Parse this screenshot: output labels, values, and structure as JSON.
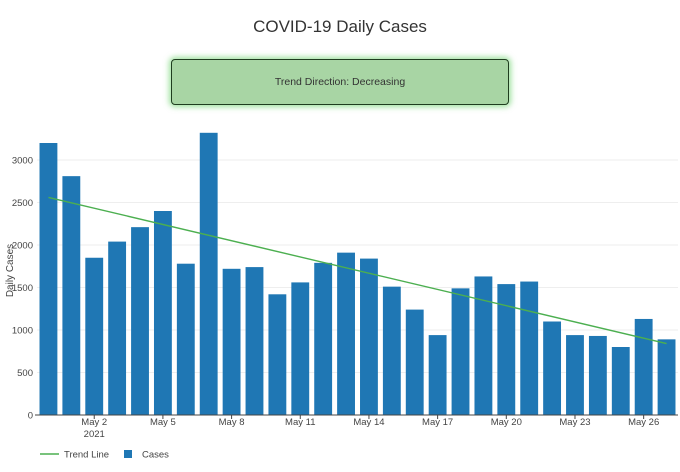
{
  "trend_box": {
    "label": "Trend Direction: Decreasing"
  },
  "colors": {
    "bar": "#1f77b4",
    "trend": "#4caf50",
    "trend_box_bg": "#a8d5a4"
  },
  "chart_data": {
    "type": "bar",
    "title": "COVID-19 Daily Cases",
    "xlabel": "",
    "ylabel": "Daily Cases",
    "ylim": [
      0,
      3400
    ],
    "yticks": [
      0,
      500,
      1000,
      1500,
      2000,
      2500,
      3000
    ],
    "x": [
      "2021-04-30",
      "2021-05-01",
      "2021-05-02",
      "2021-05-03",
      "2021-05-04",
      "2021-05-05",
      "2021-05-06",
      "2021-05-07",
      "2021-05-08",
      "2021-05-09",
      "2021-05-10",
      "2021-05-11",
      "2021-05-12",
      "2021-05-13",
      "2021-05-14",
      "2021-05-15",
      "2021-05-16",
      "2021-05-17",
      "2021-05-18",
      "2021-05-19",
      "2021-05-20",
      "2021-05-21",
      "2021-05-22",
      "2021-05-23",
      "2021-05-24",
      "2021-05-25",
      "2021-05-26",
      "2021-05-27"
    ],
    "xticks": [
      {
        "date": "2021-05-02",
        "label": "May 2",
        "sublabel": "2021"
      },
      {
        "date": "2021-05-05",
        "label": "May 5"
      },
      {
        "date": "2021-05-08",
        "label": "May 8"
      },
      {
        "date": "2021-05-11",
        "label": "May 11"
      },
      {
        "date": "2021-05-14",
        "label": "May 14"
      },
      {
        "date": "2021-05-17",
        "label": "May 17"
      },
      {
        "date": "2021-05-20",
        "label": "May 20"
      },
      {
        "date": "2021-05-23",
        "label": "May 23"
      },
      {
        "date": "2021-05-26",
        "label": "May 26"
      }
    ],
    "series": [
      {
        "name": "Cases",
        "kind": "bar",
        "values": [
          3200,
          2810,
          1850,
          2040,
          2210,
          2400,
          1780,
          3320,
          1720,
          1740,
          1420,
          1560,
          1790,
          1910,
          1840,
          1510,
          1240,
          940,
          1490,
          1630,
          1540,
          1570,
          1100,
          940,
          930,
          800,
          1130,
          890
        ]
      },
      {
        "name": "Trend Line",
        "kind": "line",
        "x": [
          "2021-04-30",
          "2021-05-27"
        ],
        "values": [
          2560,
          840
        ]
      }
    ],
    "legend": "bottom-left"
  }
}
